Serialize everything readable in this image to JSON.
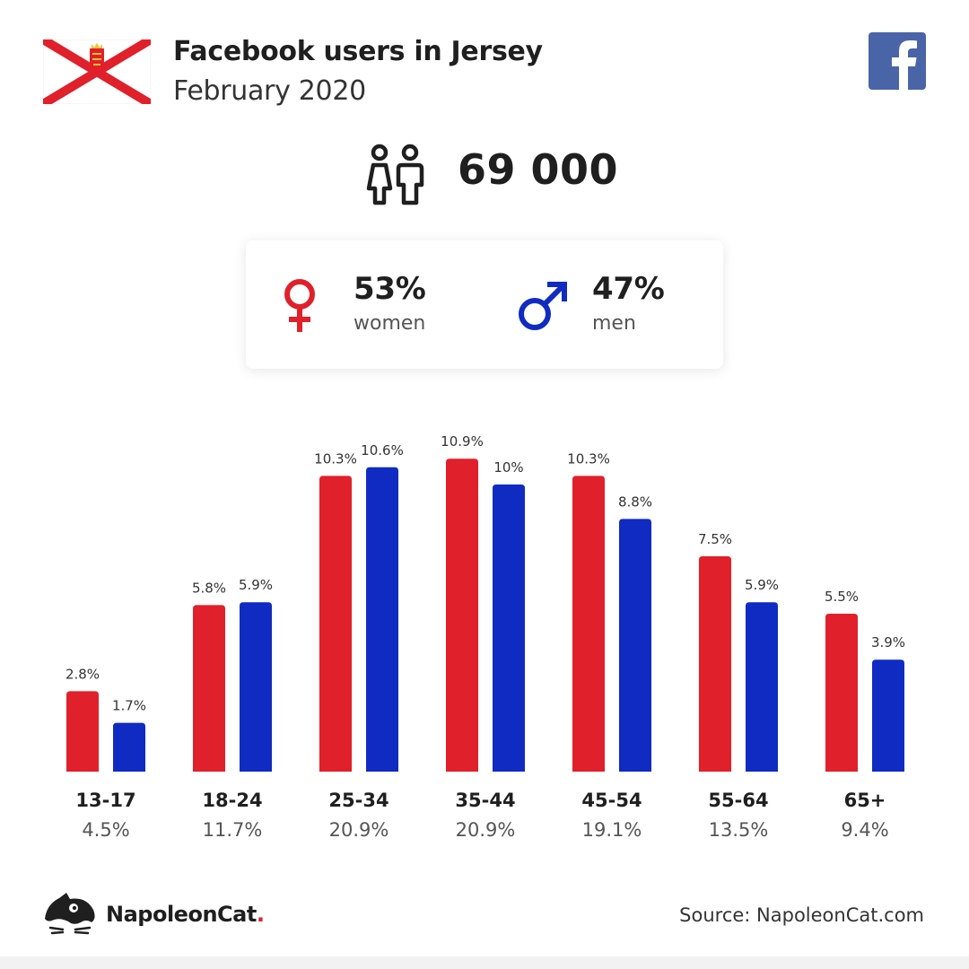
{
  "header": {
    "title": "Facebook users in Jersey",
    "subtitle": "February 2020"
  },
  "icons": {
    "flag": "jersey-flag-icon",
    "social": "facebook-icon",
    "users": "people-icon",
    "female": "female-symbol-icon",
    "male": "male-symbol-icon",
    "brand_logo": "napoleoncat-logo-icon"
  },
  "total_users": "69 000",
  "gender": {
    "women": {
      "percent": "53%",
      "label": "women"
    },
    "men": {
      "percent": "47%",
      "label": "men"
    }
  },
  "colors": {
    "women": "#e0202a",
    "men": "#0f2bc2",
    "facebook": "#4a64a8",
    "text": "#1f1f1f"
  },
  "chart_data": {
    "type": "bar",
    "categories": [
      "13-17",
      "18-24",
      "25-34",
      "35-44",
      "45-54",
      "55-64",
      "65+"
    ],
    "category_totals": [
      "4.5%",
      "11.7%",
      "20.9%",
      "20.9%",
      "19.1%",
      "13.5%",
      "9.4%"
    ],
    "series": [
      {
        "name": "women",
        "values": [
          2.8,
          5.8,
          10.3,
          10.9,
          10.3,
          7.5,
          5.5
        ],
        "labels": [
          "2.8%",
          "5.8%",
          "10.3%",
          "10.9%",
          "10.3%",
          "7.5%",
          "5.5%"
        ]
      },
      {
        "name": "men",
        "values": [
          1.7,
          5.9,
          10.6,
          10.0,
          8.8,
          5.9,
          3.9
        ],
        "labels": [
          "1.7%",
          "5.9%",
          "10.6%",
          "10%",
          "8.8%",
          "5.9%",
          "3.9%"
        ]
      }
    ],
    "ylim": [
      0,
      11
    ],
    "grid": false,
    "legend": "none"
  },
  "footer": {
    "brand_name": "NapoleonCat",
    "brand_dot": ".",
    "source": "Source: NapoleonCat.com"
  }
}
